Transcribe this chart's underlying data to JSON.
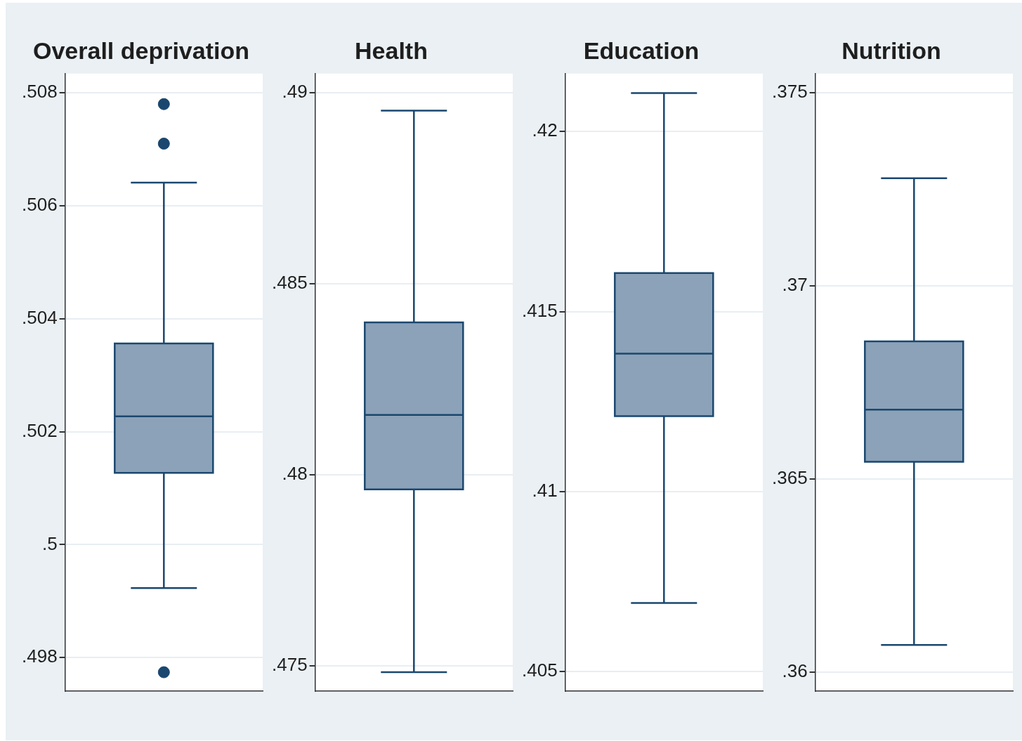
{
  "chart_data": [
    {
      "type": "box",
      "title": "Overall deprivation",
      "categories": [
        null
      ],
      "color": "#8ca2b8",
      "grid": "y",
      "legend": false,
      "marker": "circle",
      "ylim": [
        0.49741,
        0.50834
      ],
      "yticks": [
        {
          "value": 0.498,
          "label": ".498"
        },
        {
          "value": 0.5,
          "label": ".5"
        },
        {
          "value": 0.502,
          "label": ".502"
        },
        {
          "value": 0.504,
          "label": ".504"
        },
        {
          "value": 0.506,
          "label": ".506"
        },
        {
          "value": 0.508,
          "label": ".508"
        }
      ],
      "boxes": [
        {
          "low": 0.49923,
          "q1": 0.50127,
          "median": 0.50227,
          "q3": 0.50356,
          "high": 0.50641,
          "outliers": [
            0.5078,
            0.5071,
            0.49774
          ]
        }
      ]
    },
    {
      "type": "box",
      "title": "Health",
      "categories": [
        null
      ],
      "color": "#8ca2b8",
      "grid": "y",
      "legend": false,
      "marker": "circle",
      "ylim": [
        0.47435,
        0.4905
      ],
      "yticks": [
        {
          "value": 0.475,
          "label": ".475"
        },
        {
          "value": 0.48,
          "label": ".48"
        },
        {
          "value": 0.485,
          "label": ".485"
        },
        {
          "value": 0.49,
          "label": ".49"
        }
      ],
      "boxes": [
        {
          "low": 0.47484,
          "q1": 0.47962,
          "median": 0.48157,
          "q3": 0.48399,
          "high": 0.48953
        }
      ]
    },
    {
      "type": "box",
      "title": "Education",
      "categories": [
        null
      ],
      "color": "#8ca2b8",
      "grid": "y",
      "legend": false,
      "marker": "circle",
      "ylim": [
        0.40446,
        0.42161
      ],
      "yticks": [
        {
          "value": 0.405,
          "label": ".405"
        },
        {
          "value": 0.41,
          "label": ".41"
        },
        {
          "value": 0.415,
          "label": ".415"
        },
        {
          "value": 0.42,
          "label": ".42"
        }
      ],
      "boxes": [
        {
          "low": 0.4069,
          "q1": 0.41209,
          "median": 0.41383,
          "q3": 0.41607,
          "high": 0.42107
        }
      ]
    },
    {
      "type": "box",
      "title": "Nutrition",
      "categories": [
        null
      ],
      "color": "#8ca2b8",
      "grid": "y",
      "legend": false,
      "marker": "circle",
      "ylim": [
        0.35952,
        0.3755
      ],
      "yticks": [
        {
          "value": 0.36,
          "label": ".36"
        },
        {
          "value": 0.365,
          "label": ".365"
        },
        {
          "value": 0.37,
          "label": ".37"
        },
        {
          "value": 0.375,
          "label": ".375"
        }
      ],
      "boxes": [
        {
          "low": 0.36071,
          "q1": 0.36545,
          "median": 0.3668,
          "q3": 0.36857,
          "high": 0.37279
        }
      ]
    }
  ]
}
